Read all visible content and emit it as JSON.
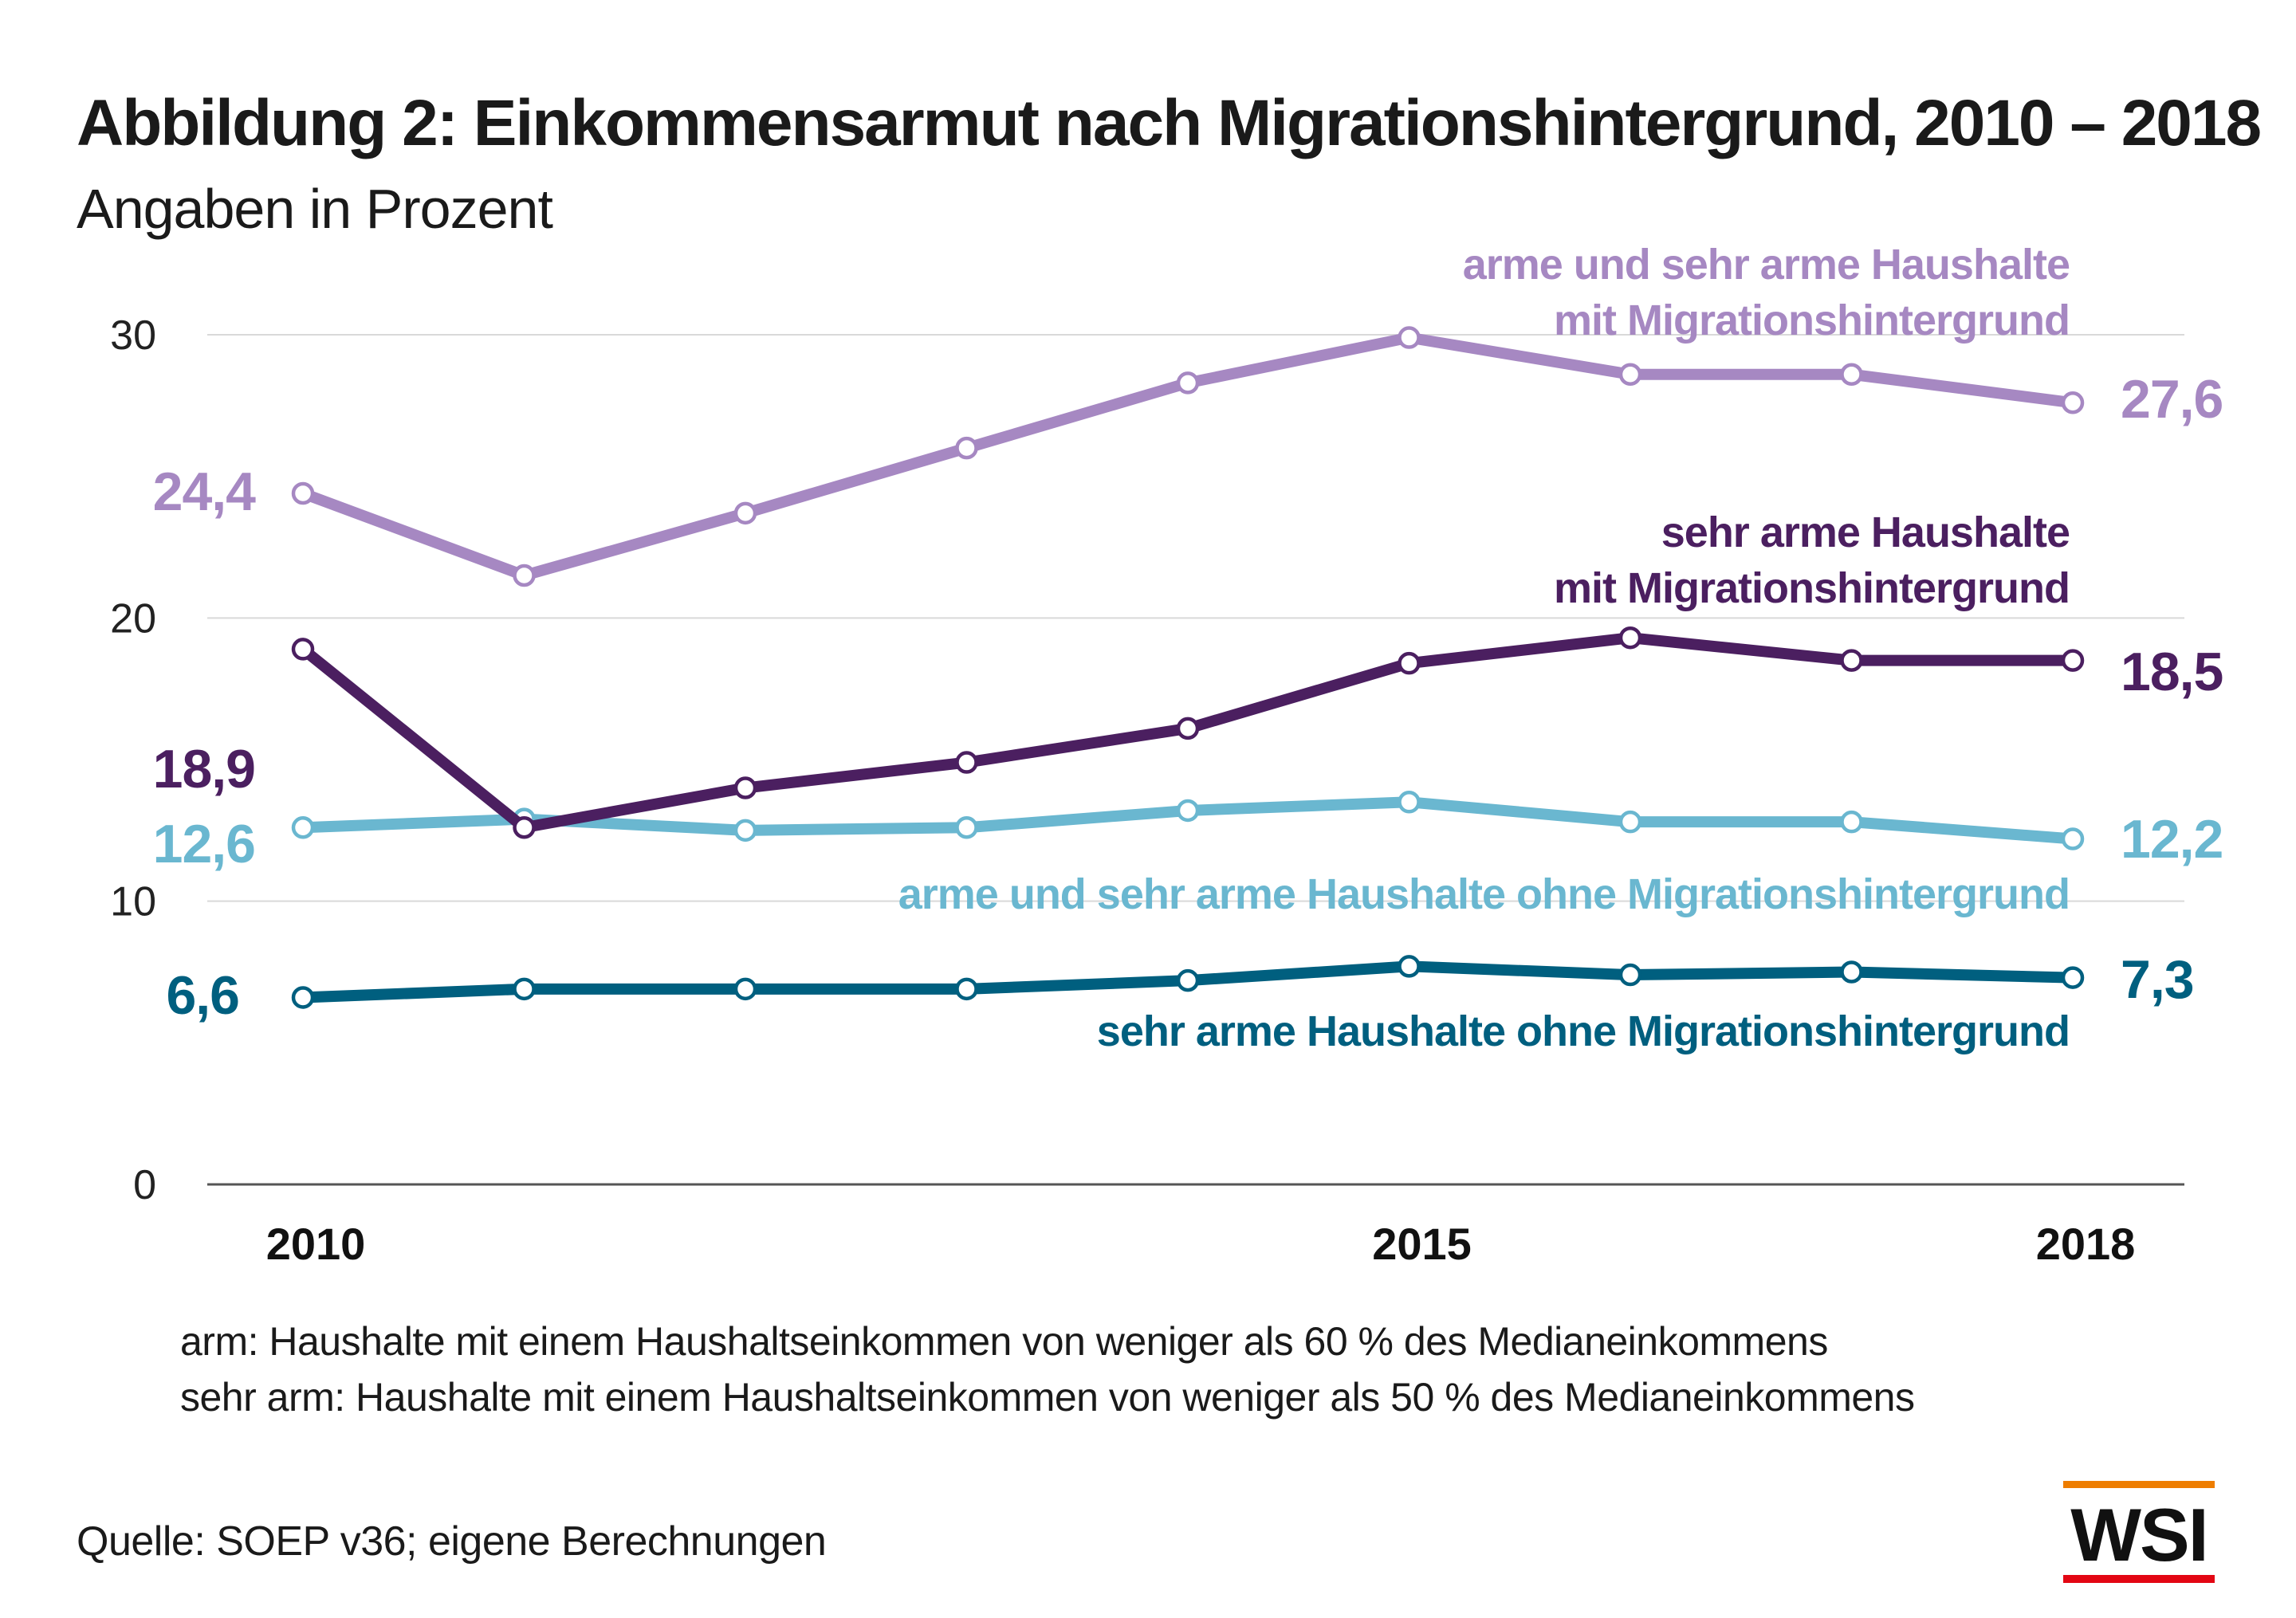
{
  "header": {
    "title": "Abbildung 2: Einkommensarmut nach Migrationshintergrund, 2010 – 2018",
    "subtitle": "Angaben in Prozent"
  },
  "chart_data": {
    "type": "line",
    "x": [
      2010,
      2011,
      2012,
      2013,
      2014,
      2015,
      2016,
      2017,
      2018
    ],
    "x_tick_labels": [
      "2010",
      "2015",
      "2018"
    ],
    "y_tick_labels": [
      "0",
      "10",
      "20",
      "30"
    ],
    "ylim": [
      0,
      33
    ],
    "grid": true,
    "series": [
      {
        "name": "arme und sehr arme Haushalte mit Migrationshintergrund",
        "label_lines": [
          "arme und sehr arme Haushalte",
          "mit Migrationshintergrund"
        ],
        "color": "#a688c2",
        "values": [
          24.4,
          21.5,
          23.7,
          26.0,
          28.3,
          29.9,
          28.6,
          28.6,
          27.6
        ],
        "start_label": "24,4",
        "end_label": "27,6"
      },
      {
        "name": "sehr arme Haushalte mit Migrationshintergrund",
        "label_lines": [
          "sehr arme Haushalte",
          "mit Migrationshintergrund"
        ],
        "color": "#4b1f60",
        "values": [
          18.9,
          12.6,
          14.0,
          14.9,
          16.1,
          18.4,
          19.3,
          18.5,
          18.5
        ],
        "start_label": "18,9",
        "end_label": "18,5"
      },
      {
        "name": "arme und sehr arme Haushalte ohne Migrationshintergrund",
        "label_lines": [
          "arme und sehr arme Haushalte ohne Migrationshintergrund"
        ],
        "color": "#6ab7d0",
        "values": [
          12.6,
          12.9,
          12.5,
          12.6,
          13.2,
          13.5,
          12.8,
          12.8,
          12.2
        ],
        "start_label": "12,6",
        "end_label": "12,2"
      },
      {
        "name": "sehr arme Haushalte ohne Migrationshintergrund",
        "label_lines": [
          "sehr arme Haushalte ohne Migrationshintergrund"
        ],
        "color": "#005f7f",
        "values": [
          6.6,
          6.9,
          6.9,
          6.9,
          7.2,
          7.7,
          7.4,
          7.5,
          7.3
        ],
        "start_label": "6,6",
        "end_label": "7,3"
      }
    ]
  },
  "notes": [
    "arm: Haushalte mit einem Haushaltseinkommen von weniger als 60 % des Medianeinkommens",
    "sehr arm: Haushalte mit einem Haushaltseinkommen von weniger als 50 % des Medianeinkommens"
  ],
  "source": "Quelle: SOEP v36; eigene Berechnungen",
  "logo": {
    "text": "WSI",
    "accent_top": "#ee7d00",
    "accent_bottom": "#e30613"
  }
}
